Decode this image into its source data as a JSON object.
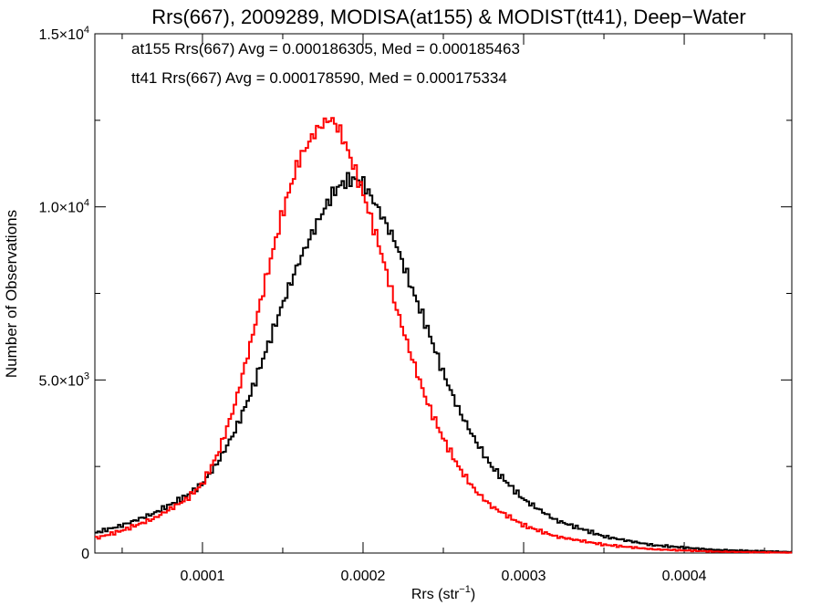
{
  "chart_data": {
    "type": "line",
    "title": "Rrs(667), 2009289, MODISA(at155) & MODIST(tt41), Deep−Water",
    "xlabel": "Rrs (str",
    "xlabel_sup": "−1",
    "xlabel_close": ")",
    "ylabel": "Number of Observations",
    "xlim": [
      3.3e-05,
      0.000467
    ],
    "ylim": [
      0,
      15000
    ],
    "x_ticks": [
      {
        "value": 0.0001,
        "label": "0.0001"
      },
      {
        "value": 0.0002,
        "label": "0.0002"
      },
      {
        "value": 0.0003,
        "label": "0.0003"
      },
      {
        "value": 0.0004,
        "label": "0.0004"
      }
    ],
    "y_ticks": [
      {
        "value": 0,
        "mant": "0",
        "exp": ""
      },
      {
        "value": 5000,
        "mant": "5.0×10",
        "exp": "3"
      },
      {
        "value": 10000,
        "mant": "1.0×10",
        "exp": "4"
      },
      {
        "value": 15000,
        "mant": "1.5×10",
        "exp": "4"
      }
    ],
    "grid": false,
    "legend_position": "top-left",
    "series": [
      {
        "name": "at155",
        "color": "#000000",
        "annotation": "at155 Rrs(667) Avg = 0.000186305, Med = 0.000185463",
        "points": [
          [
            3.3e-05,
            580
          ],
          [
            5e-05,
            800
          ],
          [
            7e-05,
            1150
          ],
          [
            9e-05,
            1650
          ],
          [
            0.0001,
            2000
          ],
          [
            0.00011,
            2650
          ],
          [
            0.00012,
            3500
          ],
          [
            0.00013,
            4600
          ],
          [
            0.00014,
            5900
          ],
          [
            0.00015,
            7200
          ],
          [
            0.00016,
            8400
          ],
          [
            0.00017,
            9400
          ],
          [
            0.00018,
            10300
          ],
          [
            0.000185,
            10600
          ],
          [
            0.00019,
            10750
          ],
          [
            0.000195,
            10800
          ],
          [
            0.0002,
            10700
          ],
          [
            0.00021,
            9900
          ],
          [
            0.00022,
            9000
          ],
          [
            0.00023,
            7700
          ],
          [
            0.00024,
            6500
          ],
          [
            0.00025,
            5200
          ],
          [
            0.00026,
            4100
          ],
          [
            0.00027,
            3250
          ],
          [
            0.00028,
            2500
          ],
          [
            0.0003,
            1550
          ],
          [
            0.00032,
            950
          ],
          [
            0.00035,
            480
          ],
          [
            0.00038,
            230
          ],
          [
            0.00042,
            90
          ],
          [
            0.000467,
            30
          ]
        ]
      },
      {
        "name": "tt41",
        "color": "#ff0000",
        "annotation": "tt41 Rrs(667) Avg = 0.000178590, Med = 0.000175334",
        "points": [
          [
            3.3e-05,
            420
          ],
          [
            5e-05,
            650
          ],
          [
            7e-05,
            1000
          ],
          [
            9e-05,
            1550
          ],
          [
            0.0001,
            2000
          ],
          [
            0.00011,
            2900
          ],
          [
            0.00012,
            4250
          ],
          [
            0.00013,
            6050
          ],
          [
            0.00014,
            8000
          ],
          [
            0.00015,
            9850
          ],
          [
            0.00016,
            11350
          ],
          [
            0.00017,
            12150
          ],
          [
            0.000175,
            12400
          ],
          [
            0.00018,
            12550
          ],
          [
            0.000185,
            12250
          ],
          [
            0.00019,
            11700
          ],
          [
            0.0002,
            10400
          ],
          [
            0.00021,
            8900
          ],
          [
            0.00022,
            7200
          ],
          [
            0.00023,
            5700
          ],
          [
            0.00024,
            4350
          ],
          [
            0.00025,
            3300
          ],
          [
            0.00026,
            2450
          ],
          [
            0.00027,
            1800
          ],
          [
            0.00028,
            1350
          ],
          [
            0.0003,
            800
          ],
          [
            0.00032,
            480
          ],
          [
            0.00035,
            240
          ],
          [
            0.00038,
            110
          ],
          [
            0.00042,
            40
          ],
          [
            0.000467,
            10
          ]
        ]
      }
    ]
  }
}
